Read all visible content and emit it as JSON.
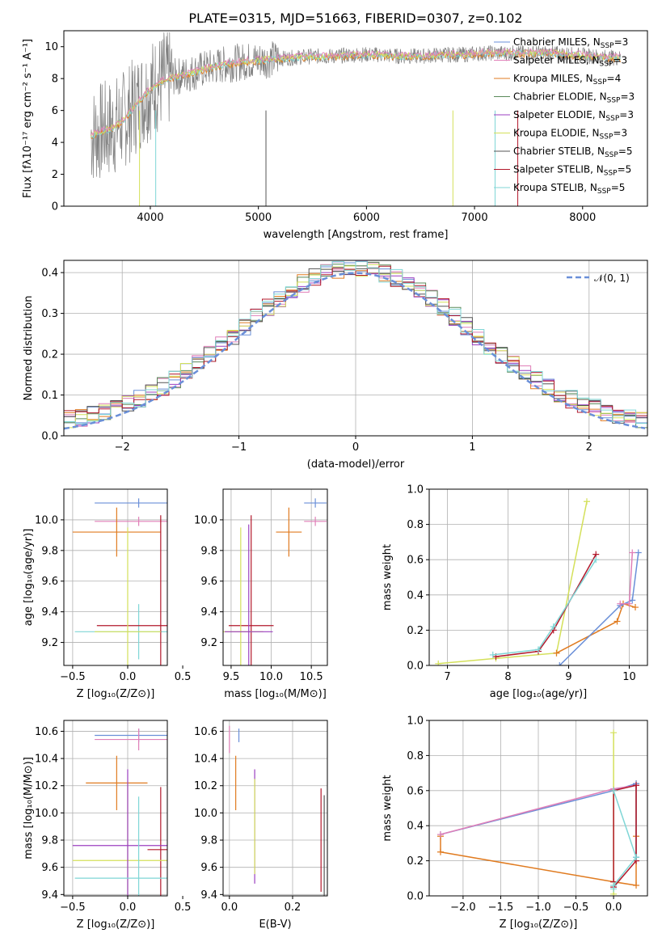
{
  "colors": {
    "gray": "#808080",
    "blue": "#6a8fd8",
    "orange": "#e07b20",
    "green": "#5a8a5a",
    "purple": "#9b3fc0",
    "yellow": "#d4e05a",
    "darkgray": "#555555",
    "red": "#b2182b",
    "cyan": "#7fd6d6",
    "pink": "#e07fb8"
  },
  "chart_data": [
    {
      "id": "spectrum",
      "type": "line",
      "title": "PLATE=0315, MJD=51663, FIBERID=0307, z=0.102",
      "xlabel": "wavelength [Angstrom, rest frame]",
      "ylabel": "Flux [fλ10⁻¹⁷ erg cm⁻² s⁻¹ A⁻¹]",
      "xlim": [
        3200,
        8600
      ],
      "ylim": [
        0,
        11
      ],
      "xticks": [
        "4000",
        "5000",
        "6000",
        "7000",
        "8000"
      ],
      "xtick_values": [
        4000,
        5000,
        6000,
        7000,
        8000
      ],
      "yticks": [
        "0",
        "2",
        "4",
        "6",
        "8",
        "10"
      ],
      "ytick_values": [
        0,
        2,
        4,
        6,
        8,
        10
      ],
      "legend": [
        {
          "label": "Chabrier MILES, N",
          "sub": "SSP",
          "tail": "=3",
          "color": "blue"
        },
        {
          "label": "Salpeter MILES, N",
          "sub": "SSP",
          "tail": "=3",
          "color": "pink"
        },
        {
          "label": "Kroupa MILES, N",
          "sub": "SSP",
          "tail": "=4",
          "color": "orange"
        },
        {
          "label": "Chabrier ELODIE, N",
          "sub": "SSP",
          "tail": "=3",
          "color": "green"
        },
        {
          "label": "Salpeter ELODIE, N",
          "sub": "SSP",
          "tail": "=3",
          "color": "purple"
        },
        {
          "label": "Kroupa ELODIE, N",
          "sub": "SSP",
          "tail": "=3",
          "color": "yellow"
        },
        {
          "label": "Chabrier STELIB, N",
          "sub": "SSP",
          "tail": "=5",
          "color": "darkgray"
        },
        {
          "label": "Salpeter STELIB, N",
          "sub": "SSP",
          "tail": "=5",
          "color": "red"
        },
        {
          "label": "Kroupa STELIB, N",
          "sub": "SSP",
          "tail": "=5",
          "color": "cyan"
        }
      ],
      "series": [
        {
          "x": [
            3450,
            3550,
            3650,
            3750,
            3850,
            3950,
            4050,
            4150,
            4300,
            4500,
            4700,
            4900,
            5100,
            5300,
            5500,
            5700,
            5900,
            6100,
            6300,
            6500,
            6700,
            6900,
            7100,
            7300,
            7500,
            7700,
            7900,
            8100,
            8300
          ],
          "y": [
            4.4,
            4.7,
            4.9,
            5.4,
            6.2,
            7.0,
            7.6,
            8.0,
            8.2,
            8.6,
            8.9,
            9.1,
            9.2,
            9.3,
            9.4,
            9.4,
            9.5,
            9.5,
            9.4,
            9.4,
            9.5,
            9.5,
            9.6,
            9.6,
            9.6,
            9.6,
            9.5,
            9.4,
            9.3
          ]
        }
      ]
    },
    {
      "id": "residuals",
      "type": "line",
      "xlabel": "(data-model)/error",
      "ylabel": "Normed distribution",
      "xlim": [
        -2.5,
        2.5
      ],
      "ylim": [
        0,
        0.43
      ],
      "xticks": [
        "−2",
        "−1",
        "0",
        "1",
        "2"
      ],
      "xtick_values": [
        -2,
        -1,
        0,
        1,
        2
      ],
      "yticks": [
        "0.0",
        "0.1",
        "0.2",
        "0.3",
        "0.4"
      ],
      "ytick_values": [
        0,
        0.1,
        0.2,
        0.3,
        0.4
      ],
      "legend": [
        {
          "label": "𝒩(0, 1)",
          "color": "blue"
        }
      ],
      "series": [
        {
          "name": "𝒩(0, 1)",
          "mu": 0,
          "sigma": 1
        }
      ]
    },
    {
      "id": "age-vs-Z",
      "type": "scatter",
      "xlabel": "Z [log₁₀(Z/Z⊙)]",
      "ylabel": "age  [log₁₀(age/yr)]",
      "xlim": [
        -0.58,
        0.36
      ],
      "ylim": [
        9.05,
        10.2
      ],
      "xticks": [
        "−0.5",
        "0.0",
        "0.5"
      ],
      "xtick_values": [
        -0.5,
        0,
        0.5
      ],
      "yticks": [
        "9.2",
        "9.4",
        "9.6",
        "9.8",
        "10.0"
      ],
      "ytick_values": [
        9.2,
        9.4,
        9.6,
        9.8,
        10.0
      ],
      "points": [
        {
          "x": 0.1,
          "y": 10.11,
          "xe": 0.4,
          "ye": 0.03,
          "color": "blue"
        },
        {
          "x": 0.1,
          "y": 9.99,
          "xe": 0.4,
          "ye": 0.03,
          "color": "pink"
        },
        {
          "x": -0.1,
          "y": 9.92,
          "xe": 0.4,
          "ye": 0.16,
          "color": "orange"
        },
        {
          "x": 0.1,
          "y": 9.27,
          "xe": 0.58,
          "ye": 0.18,
          "color": "cyan"
        },
        {
          "x": 0.3,
          "y": 9.31,
          "xe": 0.58,
          "ye": 0.72,
          "color": "red"
        },
        {
          "x": 0.0,
          "y": 9.27,
          "xe": 0.3,
          "ye": 0.68,
          "color": "yellow"
        }
      ]
    },
    {
      "id": "age-vs-mass",
      "type": "scatter",
      "xlabel": "mass [log₁₀(M/M⊙)]",
      "ylabel": "",
      "xlim": [
        9.4,
        10.7
      ],
      "ylim": [
        9.05,
        10.2
      ],
      "xticks": [
        "9.5",
        "10.0",
        "10.5"
      ],
      "xtick_values": [
        9.5,
        10.0,
        10.5
      ],
      "yticks": [
        "9.2",
        "9.4",
        "9.6",
        "9.8",
        "10.0"
      ],
      "ytick_values": [
        9.2,
        9.4,
        9.6,
        9.8,
        10.0
      ],
      "points": [
        {
          "x": 10.55,
          "y": 10.11,
          "xe": 0.14,
          "ye": 0.03,
          "color": "blue"
        },
        {
          "x": 10.55,
          "y": 9.99,
          "xe": 0.14,
          "ye": 0.03,
          "color": "pink"
        },
        {
          "x": 10.22,
          "y": 9.92,
          "xe": 0.16,
          "ye": 0.16,
          "color": "orange"
        },
        {
          "x": 9.75,
          "y": 9.31,
          "xe": 0.28,
          "ye": 0.72,
          "color": "red"
        },
        {
          "x": 9.62,
          "y": 9.27,
          "xe": 0.28,
          "ye": 0.68,
          "color": "yellow"
        },
        {
          "x": 9.72,
          "y": 9.27,
          "xe": 0.3,
          "ye": 0.7,
          "color": "purple"
        }
      ]
    },
    {
      "id": "massweight-vs-age",
      "type": "line",
      "xlabel": "age  [log₁₀(age/yr)]",
      "ylabel": "mass weight",
      "xlim": [
        6.7,
        10.3
      ],
      "ylim": [
        0,
        1.0
      ],
      "xticks": [
        "7",
        "8",
        "9",
        "10"
      ],
      "xtick_values": [
        7,
        8,
        9,
        10
      ],
      "yticks": [
        "0.0",
        "0.2",
        "0.4",
        "0.6",
        "0.8",
        "1.0"
      ],
      "ytick_values": [
        0,
        0.2,
        0.4,
        0.6,
        0.8,
        1.0
      ],
      "series": [
        {
          "color": "yellow",
          "x": [
            6.85,
            7.8,
            8.8,
            9.3
          ],
          "y": [
            0.01,
            0.04,
            0.07,
            0.93
          ]
        },
        {
          "color": "red",
          "x": [
            7.8,
            8.5,
            8.75,
            9.45
          ],
          "y": [
            0.05,
            0.08,
            0.2,
            0.63
          ]
        },
        {
          "color": "cyan",
          "x": [
            7.75,
            8.5,
            8.75,
            9.45
          ],
          "y": [
            0.06,
            0.09,
            0.22,
            0.6
          ]
        },
        {
          "color": "orange",
          "x": [
            8.8,
            9.8,
            9.9,
            10.1
          ],
          "y": [
            0.07,
            0.25,
            0.35,
            0.33
          ]
        },
        {
          "color": "blue",
          "x": [
            8.85,
            9.85,
            10.05,
            10.15
          ],
          "y": [
            0.0,
            0.34,
            0.37,
            0.64
          ]
        },
        {
          "color": "pink",
          "x": [
            9.85,
            10.0,
            10.05
          ],
          "y": [
            0.35,
            0.35,
            0.64
          ]
        }
      ]
    },
    {
      "id": "mass-vs-Z",
      "type": "scatter",
      "xlabel": "Z [log₁₀(Z/Z⊙)]",
      "ylabel": "mass [log₁₀(M/M⊙)]",
      "xlim": [
        -0.58,
        0.36
      ],
      "ylim": [
        9.39,
        10.68
      ],
      "xticks": [
        "−0.5",
        "0.0",
        "0.5"
      ],
      "xtick_values": [
        -0.5,
        0,
        0.5
      ],
      "yticks": [
        "9.4",
        "9.6",
        "9.8",
        "10.0",
        "10.2",
        "10.4",
        "10.6"
      ],
      "ytick_values": [
        9.4,
        9.6,
        9.8,
        10.0,
        10.2,
        10.4,
        10.6
      ],
      "points": [
        {
          "x": 0.1,
          "y": 10.57,
          "xe": 0.4,
          "ye": 0.05,
          "color": "blue"
        },
        {
          "x": 0.1,
          "y": 10.54,
          "xe": 0.4,
          "ye": 0.08,
          "color": "pink"
        },
        {
          "x": -0.1,
          "y": 10.22,
          "xe": 0.28,
          "ye": 0.2,
          "color": "orange"
        },
        {
          "x": 0.3,
          "y": 9.73,
          "xe": 0.12,
          "ye": 0.46,
          "color": "red"
        },
        {
          "x": 0.0,
          "y": 9.65,
          "xe": 0.5,
          "ye": 0.58,
          "color": "yellow"
        },
        {
          "x": 0.0,
          "y": 9.76,
          "xe": 0.5,
          "ye": 0.56,
          "color": "purple"
        },
        {
          "x": 0.1,
          "y": 9.52,
          "xe": 0.58,
          "ye": 0.6,
          "color": "cyan"
        }
      ]
    },
    {
      "id": "mass-vs-EBV",
      "type": "scatter",
      "xlabel": "E(B-V)",
      "ylabel": "",
      "xlim": [
        -0.02,
        0.31
      ],
      "ylim": [
        9.39,
        10.68
      ],
      "xticks": [
        "0.0",
        "0.2"
      ],
      "xtick_values": [
        0,
        0.2
      ],
      "yticks": [
        "9.4",
        "9.6",
        "9.8",
        "10.0",
        "10.2",
        "10.4",
        "10.6"
      ],
      "ytick_values": [
        9.4,
        9.6,
        9.8,
        10.0,
        10.2,
        10.4,
        10.6
      ],
      "points": [
        {
          "x": 0.03,
          "y": 10.57,
          "xe": 0,
          "ye": 0.05,
          "color": "blue"
        },
        {
          "x": 0.0,
          "y": 10.54,
          "xe": 0,
          "ye": 0.1,
          "color": "pink"
        },
        {
          "x": 0.02,
          "y": 10.22,
          "xe": 0,
          "ye": 0.2,
          "color": "orange"
        },
        {
          "x": 0.08,
          "y": 9.9,
          "xe": 0,
          "ye": 0.42,
          "color": "purple"
        },
        {
          "x": 0.08,
          "y": 9.9,
          "xe": 0,
          "ye": 0.35,
          "color": "yellow"
        },
        {
          "x": 0.29,
          "y": 9.8,
          "xe": 0,
          "ye": 0.38,
          "color": "red"
        },
        {
          "x": 0.3,
          "y": 9.75,
          "xe": 0,
          "ye": 0.38,
          "color": "darkgray"
        }
      ]
    },
    {
      "id": "massweight-vs-Z",
      "type": "line",
      "xlabel": "Z [log₁₀(Z/Z⊙)]",
      "ylabel": "mass weight",
      "xlim": [
        -2.45,
        0.45
      ],
      "ylim": [
        0,
        1.0
      ],
      "xticks": [
        "−2.0",
        "−1.5",
        "−1.0",
        "−0.5",
        "0.0"
      ],
      "xtick_values": [
        -2.0,
        -1.5,
        -1.0,
        -0.5,
        0.0
      ],
      "yticks": [
        "0.0",
        "0.2",
        "0.4",
        "0.6",
        "0.8",
        "1.0"
      ],
      "ytick_values": [
        0,
        0.2,
        0.4,
        0.6,
        0.8,
        1.0
      ],
      "series": [
        {
          "color": "orange",
          "x": [
            -2.3,
            -2.3,
            0.0,
            0.3,
            0.3,
            0.3
          ],
          "y": [
            0.34,
            0.25,
            0.08,
            0.06,
            0.34,
            0.64
          ]
        },
        {
          "color": "blue",
          "x": [
            -2.3,
            0.0,
            0.3,
            0.3
          ],
          "y": [
            0.35,
            0.6,
            0.64,
            0.22
          ]
        },
        {
          "color": "pink",
          "x": [
            -2.3,
            0.0,
            0.3
          ],
          "y": [
            0.35,
            0.61,
            0.63
          ]
        },
        {
          "color": "yellow",
          "x": [
            0.0,
            0.0,
            0.0
          ],
          "y": [
            0.01,
            0.93,
            0.6
          ]
        },
        {
          "color": "red",
          "x": [
            0.0,
            0.3,
            0.3,
            0.0,
            0.0
          ],
          "y": [
            0.05,
            0.2,
            0.63,
            0.6,
            0.08
          ]
        },
        {
          "color": "cyan",
          "x": [
            0.0,
            0.3,
            0.0,
            0.0
          ],
          "y": [
            0.6,
            0.22,
            0.06,
            0.04
          ]
        }
      ]
    }
  ]
}
